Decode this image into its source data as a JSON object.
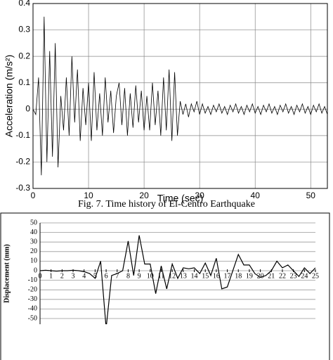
{
  "chart_data": [
    {
      "type": "line",
      "caption": "Fig. 7. Time history of El-Centro Earthquake",
      "xlabel": "Time (sec)",
      "ylabel": "Acceleration (m/s²)",
      "xlim": [
        0,
        53
      ],
      "ylim": [
        -0.3,
        0.4
      ],
      "xticks": [
        0,
        10,
        20,
        30,
        40,
        50
      ],
      "yticks": [
        -0.3,
        -0.2,
        -0.1,
        0,
        0.1,
        0.2,
        0.3,
        0.4
      ],
      "grid": true,
      "series": [
        {
          "name": "Acceleration",
          "color": "#000000",
          "x": [
            0,
            0.5,
            1,
            1.5,
            2,
            2.5,
            3,
            3.5,
            4,
            4.5,
            5,
            5.5,
            6,
            6.5,
            7,
            7.5,
            8,
            8.5,
            9,
            9.5,
            10,
            10.5,
            11,
            11.5,
            12,
            12.5,
            13,
            13.5,
            14,
            14.5,
            15,
            15.5,
            16,
            16.5,
            17,
            17.5,
            18,
            18.5,
            19,
            19.5,
            20,
            20.5,
            21,
            21.5,
            22,
            22.5,
            23,
            23.5,
            24,
            24.5,
            25,
            25.5,
            26,
            26.5,
            27,
            27.5,
            28,
            28.5,
            29,
            29.5,
            30,
            30.5,
            31,
            31.5,
            32,
            32.5,
            33,
            33.5,
            34,
            34.5,
            35,
            35.5,
            36,
            36.5,
            37,
            37.5,
            38,
            38.5,
            39,
            39.5,
            40,
            40.5,
            41,
            41.5,
            42,
            42.5,
            43,
            43.5,
            44,
            44.5,
            45,
            45.5,
            46,
            46.5,
            47,
            47.5,
            48,
            48.5,
            49,
            49.5,
            50,
            50.5,
            51,
            51.5,
            52,
            52.5,
            53
          ],
          "values": [
            0,
            -0.02,
            0.12,
            -0.25,
            0.35,
            -0.2,
            0.22,
            -0.18,
            0.25,
            -0.22,
            0.05,
            -0.08,
            0.12,
            -0.1,
            0.2,
            -0.05,
            0.15,
            -0.12,
            0.08,
            -0.06,
            0.1,
            -0.12,
            0.14,
            -0.08,
            0.06,
            -0.1,
            0.12,
            -0.05,
            0.07,
            -0.09,
            0.05,
            0.1,
            -0.06,
            0.08,
            -0.1,
            0.06,
            -0.07,
            0.09,
            -0.05,
            0.07,
            -0.08,
            0.05,
            -0.08,
            0.1,
            -0.06,
            0.07,
            -0.1,
            0.12,
            -0.08,
            0.15,
            -0.12,
            0.14,
            -0.1,
            0.03,
            -0.02,
            0.02,
            -0.03,
            0.02,
            -0.01,
            0.03,
            -0.02,
            0.02,
            -0.015,
            0.01,
            -0.02,
            0.015,
            -0.01,
            0.02,
            -0.015,
            0.01,
            -0.02,
            0.015,
            -0.01,
            0.02,
            -0.015,
            0.01,
            -0.02,
            0.015,
            -0.01,
            0.02,
            -0.015,
            0.01,
            -0.02,
            0.015,
            -0.01,
            0.02,
            -0.015,
            0.01,
            -0.02,
            0.015,
            -0.01,
            0.02,
            -0.015,
            0.01,
            -0.02,
            0.015,
            -0.01,
            0.02,
            -0.015,
            0.01,
            -0.02,
            0.015,
            -0.01,
            0.02,
            -0.015,
            0.01,
            -0.02
          ]
        }
      ]
    },
    {
      "type": "line",
      "ylabel": "Displacement (mm)",
      "xlim": [
        0,
        25
      ],
      "ylim": [
        -56,
        50
      ],
      "xticks": [
        0,
        1,
        2,
        3,
        4,
        5,
        6,
        7,
        8,
        9,
        10,
        11,
        12,
        13,
        14,
        15,
        16,
        17,
        18,
        19,
        20,
        21,
        22,
        23,
        24,
        25
      ],
      "yticks": [
        -50,
        -40,
        -30,
        -20,
        -10,
        0,
        10,
        20,
        30,
        40,
        50
      ],
      "grid": true,
      "series": [
        {
          "name": "Displacement",
          "color": "#000000",
          "x": [
            0,
            0.5,
            1,
            1.5,
            2,
            2.5,
            3,
            3.5,
            4,
            4.5,
            5,
            5.5,
            6,
            6.5,
            7,
            7.5,
            8,
            8.5,
            9,
            9.5,
            10,
            10.5,
            11,
            11.5,
            12,
            12.5,
            13,
            13.5,
            14,
            14.5,
            15,
            15.5,
            16,
            16.5,
            17,
            17.5,
            18,
            18.5,
            19,
            19.5,
            20,
            20.5,
            21,
            21.5,
            22,
            22.5,
            23,
            23.5,
            24,
            24.5,
            25
          ],
          "values": [
            0,
            0.5,
            0,
            -0.5,
            0,
            0,
            0.5,
            0,
            -1,
            -3,
            -8,
            10,
            -60,
            -5,
            -3,
            0,
            31,
            -5,
            37,
            7,
            7,
            -24,
            5,
            -19,
            7,
            -8,
            3,
            2,
            3,
            -3,
            8,
            -5,
            13,
            -19,
            -17,
            0,
            17,
            6,
            6,
            -3,
            -7,
            -5,
            0,
            10,
            3,
            6,
            0,
            -6,
            3,
            -3,
            3
          ]
        }
      ]
    }
  ]
}
